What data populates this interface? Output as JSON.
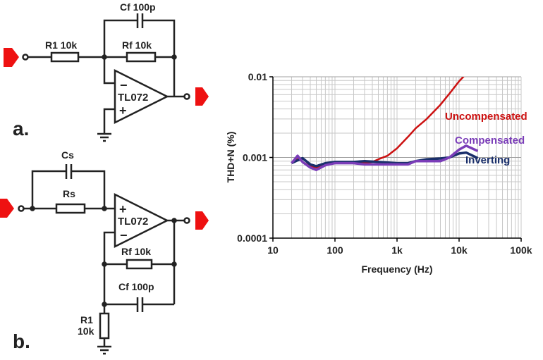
{
  "circuit_a": {
    "label": "a.",
    "r1": "R1 10k",
    "rf": "Rf 10k",
    "cf": "Cf 100p",
    "opamp": "TL072",
    "minus": "−",
    "plus": "+"
  },
  "circuit_b": {
    "label": "b.",
    "cs": "Cs",
    "rs": "Rs",
    "rf": "Rf 10k",
    "cf": "Cf 100p",
    "r1_name": "R1",
    "r1_value": "10k",
    "opamp": "TL072",
    "minus": "−",
    "plus": "+"
  },
  "colors": {
    "arrow": "#ee1111",
    "wire": "#222222"
  },
  "chart_data": {
    "type": "line",
    "xlabel": "Frequency (Hz)",
    "ylabel": "THD+N (%)",
    "xscale": "log",
    "yscale": "log",
    "xlim": [
      10,
      100000
    ],
    "ylim": [
      0.0001,
      0.01
    ],
    "xticks": [
      "10",
      "100",
      "1k",
      "10k",
      "100k"
    ],
    "yticks": [
      "0.01",
      "0.001",
      "0.0001"
    ],
    "grid": true,
    "legend": "inline labels",
    "series": [
      {
        "name": "Uncompensated",
        "color": "#cc1111",
        "x": [
          20,
          25,
          30,
          40,
          50,
          70,
          100,
          200,
          300,
          400,
          500,
          700,
          1000,
          1500,
          2000,
          3000,
          5000,
          7000,
          10000,
          12000
        ],
        "y": [
          0.00085,
          0.001,
          0.00088,
          0.00078,
          0.00075,
          0.0008,
          0.00085,
          0.00086,
          0.00085,
          0.00088,
          0.00095,
          0.00105,
          0.0013,
          0.0018,
          0.0023,
          0.003,
          0.0045,
          0.0062,
          0.0088,
          0.0102
        ]
      },
      {
        "name": "Compensated",
        "color": "#7a3db8",
        "x": [
          20,
          25,
          30,
          40,
          50,
          70,
          100,
          200,
          300,
          500,
          1000,
          1500,
          2000,
          5000,
          7000,
          10000,
          13000,
          20000
        ],
        "y": [
          0.00085,
          0.00105,
          0.00088,
          0.00075,
          0.0007,
          0.0008,
          0.00085,
          0.00085,
          0.00082,
          0.00082,
          0.00082,
          0.00082,
          0.0009,
          0.0009,
          0.001,
          0.00125,
          0.0014,
          0.0012
        ]
      },
      {
        "name": "Inverting",
        "color": "#1a2f6b",
        "x": [
          20,
          25,
          30,
          40,
          50,
          70,
          100,
          200,
          300,
          500,
          1000,
          1500,
          2000,
          3000,
          5000,
          7000,
          10000,
          13000,
          20000
        ],
        "y": [
          0.00085,
          0.00092,
          0.00098,
          0.00082,
          0.00078,
          0.00085,
          0.00088,
          0.00088,
          0.0009,
          0.00088,
          0.00085,
          0.00085,
          0.0009,
          0.00095,
          0.00097,
          0.001,
          0.00112,
          0.00115,
          0.00098
        ]
      }
    ]
  }
}
